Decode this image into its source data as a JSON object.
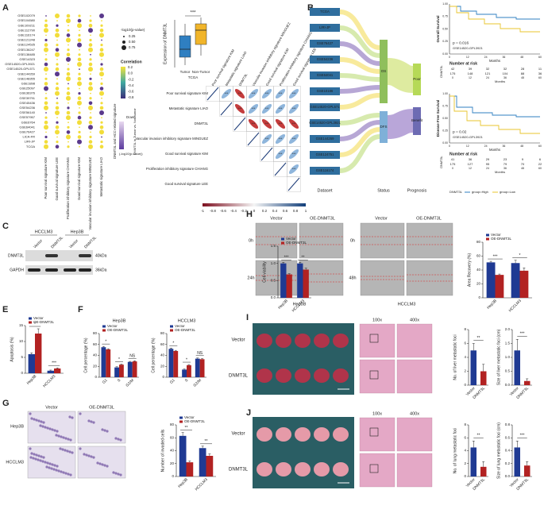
{
  "figure": {
    "letters": [
      "A",
      "B",
      "C",
      "D",
      "E",
      "F",
      "G",
      "H",
      "I",
      "J"
    ],
    "a": {
      "datasets": [
        "GSE102079",
        "GSE104580",
        "GSE109211",
        "GSE112790",
        "GSE116174",
        "GSE121248",
        "GSE124535",
        "GSE136247",
        "GSE138485",
        "GSE14323",
        "GSE14520-GPL3921",
        "GSE14520-GPL571",
        "GSE144269",
        "GSE148355",
        "GSE1898",
        "GSE25097",
        "GSE36376",
        "GSE39791",
        "GSE45436",
        "GSE54236",
        "GSE56140",
        "GSE57957",
        "GSE6764",
        "GSE64041",
        "GSE76427",
        "LICA-FR",
        "LIRI-JP",
        "TCGA"
      ],
      "columns": [
        "Poor survival signature KIM",
        "Good survival signature LEE",
        "Proliferation inhibitory signature CHIANG",
        "Good survival signature KIM",
        "Vascular invasion inhibitory signature MINGUEZ",
        "Metastatic signature LIAO"
      ],
      "side_title": "DNMT3L and HCC-related signature",
      "size_title": "-log10(p-value)",
      "size_labels": [
        "0.25",
        "0.50",
        "0.75"
      ],
      "corr_title": "Correlation",
      "corr_labels": [
        "0.2",
        "0.0",
        "-0.2",
        "-0.4",
        "-0.6",
        "-0.8"
      ],
      "diff_title": "DNMT3L in Tumor vs. Non-tumor",
      "diff_down": "Down",
      "diff_sub": "(-log10(p-value))",
      "box_ylabel": "Expression of DNMT3L",
      "box_sig": "***",
      "box_cats": [
        "Tumor",
        "Non-Tumor"
      ],
      "box_sub": "TCGA",
      "matrix_labels": [
        "Poor survival signature KIM",
        "Metastatic signature LIAO",
        "DNMT3L",
        "Vascular invasion inhibitory signature MINGUEZ",
        "Good survival signature KIM",
        "Proliferation inhibitory signature CHIANG",
        "Good survival signature LEE"
      ],
      "matrix_sig": "***",
      "matrix_scale": [
        "-1",
        "-0.8",
        "-0.6",
        "-0.4",
        "-0.2",
        "0",
        "0.2",
        "0.4",
        "0.6",
        "0.8",
        "1"
      ]
    },
    "b": {
      "datasets": [
        "TCGA",
        "LIRI-JP",
        "GSE76427",
        "GSE54236",
        "GSE64041",
        "GSE10186",
        "GSE14520-GPL571",
        "GSE14520-GPL3921",
        "GSE144269",
        "GSE124751",
        "GSE116174"
      ],
      "status": [
        "OS",
        "DFS"
      ],
      "prognosis": [
        "Poor",
        "Benefit"
      ],
      "axis": [
        "Dataset",
        "Status",
        "Prognosis"
      ],
      "km1": {
        "ylabel": "Overall Survival",
        "p": "p = 0.016",
        "dataset": "GSE14520-GPL3921",
        "xlabel": "Months",
        "risk_title": "Number at risk",
        "risk": [
          [
            "42",
            "39",
            "32",
            "32",
            "28",
            "11"
          ],
          [
            "175",
            "148",
            "121",
            "104",
            "88",
            "36"
          ]
        ]
      },
      "km2": {
        "ylabel": "Disease Free Survival",
        "p": "p = 0.02",
        "dataset": "GSE14520-GPL3921",
        "xlabel": "Months",
        "risk_title": "Number at risk",
        "risk": [
          [
            "41",
            "36",
            "29",
            "23",
            "9",
            "6"
          ],
          [
            "175",
            "127",
            "95",
            "79",
            "70",
            "22"
          ]
        ]
      },
      "xticks": [
        "0",
        "12",
        "24",
        "36",
        "48",
        "60"
      ],
      "yticks": [
        "0.00",
        "0.25",
        "0.50",
        "0.75",
        "1.00"
      ],
      "risk_label": "DNMT3L",
      "legend": [
        "DNMT3L",
        "group=High",
        "group=Low"
      ]
    },
    "c": {
      "cells": [
        "HCCLM3",
        "Hep3B"
      ],
      "lanes": [
        "Vector",
        "DNMT3L",
        "Vector",
        "DNMT3L"
      ],
      "proteins": [
        "DNMT3L",
        "GAPDH"
      ],
      "sizes": [
        "40kDa",
        "36kDa"
      ]
    },
    "g": {
      "cols": [
        "Vector",
        "OE-DNMT3L"
      ],
      "rows": [
        "Hep3B",
        "HCCLM3"
      ]
    },
    "h": {
      "cols": [
        "Vector",
        "OE-DNMT3L"
      ],
      "times_hep3b": [
        "0h",
        "24h"
      ],
      "cols2": [
        "Vector",
        "OE-DNMT3L"
      ],
      "times_hcclm3": [
        "0h",
        "48h"
      ],
      "cells": [
        "Hep3B",
        "HCCLM3"
      ]
    },
    "i": {
      "rows": [
        "Vector",
        "DNMT3L"
      ],
      "mags": [
        "100x",
        "400x"
      ]
    },
    "j": {
      "rows": [
        "Vector",
        "DNMT3L"
      ],
      "mags": [
        "100x",
        "400x"
      ]
    },
    "charts": [
      {
        "type": "bar",
        "ylabel": "Cell viability",
        "categories": [
          "Hep3B",
          "HCCLM3"
        ],
        "series": [
          {
            "name": "Vector",
            "color": "#1f3a93",
            "values": [
              1.0,
              1.0
            ],
            "errors": [
              0.03,
              0.03
            ]
          },
          {
            "name": "OE-DNMT3L",
            "color": "#b22222",
            "values": [
              0.68,
              0.82
            ],
            "errors": [
              0.02,
              0.04
            ]
          }
        ],
        "sig": [
          "***",
          "**"
        ],
        "ylim": [
          0,
          1.5
        ],
        "yticks": [
          {
            "value": 0,
            "label": "0.0"
          },
          0.5,
          {
            "value": 1,
            "label": "1.0"
          },
          1.5
        ]
      },
      {
        "type": "bar",
        "ylabel": "Apoptosis (%)",
        "categories": [
          "Hep3B",
          "HCCLM3"
        ],
        "series": [
          {
            "name": "Vector",
            "color": "#1f3a93",
            "values": [
              6,
              0.8
            ],
            "errors": [
              0.4,
              0.2
            ]
          },
          {
            "name": "OE-DNMT3L",
            "color": "#b22222",
            "values": [
              12.5,
              1.5
            ],
            "errors": [
              1.5,
              0.2
            ]
          }
        ],
        "sig": [
          "*",
          "***"
        ],
        "ylim": [
          0,
          15
        ],
        "yticks": [
          0,
          5,
          10,
          15
        ]
      },
      {
        "type": "bar",
        "title": "Hep3B",
        "ylabel": "Cell percentage (%)",
        "categories": [
          "G1",
          "S",
          "G2/M"
        ],
        "series": [
          {
            "name": "Vector",
            "color": "#1f3a93",
            "values": [
              55,
              18,
              28
            ],
            "errors": [
              1.5,
              1.2,
              1.0
            ]
          },
          {
            "name": "OE-DNMT3L",
            "color": "#b22222",
            "values": [
              51,
              23,
              29
            ],
            "errors": [
              1.2,
              1.0,
              1.2
            ]
          }
        ],
        "sig": [
          "*",
          "*",
          "NS"
        ],
        "ylim": [
          0,
          80
        ],
        "yticks": [
          0,
          20,
          40,
          60,
          80
        ]
      },
      {
        "type": "bar",
        "title": "HCCLM3",
        "ylabel": "Cell percentage (%)",
        "categories": [
          "G1",
          "S",
          "G2/M"
        ],
        "series": [
          {
            "name": "Vector",
            "color": "#1f3a93",
            "values": [
              52,
              14,
              34
            ],
            "errors": [
              1.5,
              1.0,
              1.2
            ]
          },
          {
            "name": "OE-DNMT3L",
            "color": "#b22222",
            "values": [
              48,
              22,
              33
            ],
            "errors": [
              1.2,
              1.2,
              1.0
            ]
          }
        ],
        "sig": [
          "*",
          "*",
          "NS"
        ],
        "ylim": [
          0,
          80
        ],
        "yticks": [
          0,
          20,
          40,
          60,
          80
        ]
      },
      {
        "type": "bar",
        "ylabel": "Number of invaded cells",
        "categories": [
          "Hep3B",
          "HCCLM3"
        ],
        "series": [
          {
            "name": "Vector",
            "color": "#1f3a93",
            "values": [
              63,
              44
            ],
            "errors": [
              5,
              3
            ]
          },
          {
            "name": "OE-DNMT3L",
            "color": "#b22222",
            "values": [
              22,
              32
            ],
            "errors": [
              2,
              3
            ]
          }
        ],
        "sig": [
          "**",
          "**"
        ],
        "ylim": [
          0,
          80
        ],
        "yticks": [
          0,
          20,
          40,
          60,
          80
        ]
      },
      {
        "type": "bar",
        "ylabel": "Area Recovery (%)",
        "categories": [
          "Hep3B",
          "HCCLM3"
        ],
        "series": [
          {
            "name": "Vector",
            "color": "#1f3a93",
            "values": [
              51,
              50
            ],
            "errors": [
              1.5,
              4
            ]
          },
          {
            "name": "OE-DNMT3L",
            "color": "#b22222",
            "values": [
              33,
              39
            ],
            "errors": [
              1.2,
              4
            ]
          }
        ],
        "sig": [
          "***",
          "*"
        ],
        "ylim": [
          0,
          80
        ],
        "yticks": [
          0,
          20,
          40,
          60,
          80
        ]
      },
      {
        "type": "bar",
        "ylabel": "No. of liver metastatic foci",
        "categories": [
          "Vector",
          "DNMT3L"
        ],
        "colors": [
          "#1f3a93",
          "#b22222"
        ],
        "values": [
          5,
          2
        ],
        "errors": [
          1,
          1
        ],
        "sig": [
          "**"
        ],
        "ylim": [
          0,
          8
        ],
        "yticks": [
          0,
          2,
          4,
          6,
          8
        ]
      },
      {
        "type": "bar",
        "ylabel": "Size of liver metastatic foci (cm)",
        "categories": [
          "Vector",
          "DNMT3L"
        ],
        "colors": [
          "#1f3a93",
          "#b22222"
        ],
        "values": [
          1.25,
          0.15
        ],
        "errors": [
          0.4,
          0.08
        ],
        "sig": [
          "***"
        ],
        "ylim": [
          0,
          2
        ],
        "yticks": [
          {
            "value": 0,
            "label": "0.0"
          },
          0.5,
          {
            "value": 1,
            "label": "1.0"
          },
          1.5,
          {
            "value": 2,
            "label": "2.0"
          }
        ]
      },
      {
        "type": "bar",
        "ylabel": "No. of lung metastatic foci",
        "categories": [
          "Vector",
          "DNMT3L"
        ],
        "colors": [
          "#1f3a93",
          "#b22222"
        ],
        "values": [
          4.5,
          1.5
        ],
        "errors": [
          1,
          0.8
        ],
        "sig": [
          "**"
        ],
        "ylim": [
          0,
          8
        ],
        "yticks": [
          0,
          2,
          4,
          6,
          8
        ]
      },
      {
        "type": "bar",
        "ylabel": "Size of lung metastatic foci (cm)",
        "categories": [
          "Vector",
          "DNMT3L"
        ],
        "colors": [
          "#1f3a93",
          "#b22222"
        ],
        "values": [
          0.45,
          0.17
        ],
        "errors": [
          0.1,
          0.06
        ],
        "sig": [
          "***"
        ],
        "ylim": [
          0,
          0.8
        ],
        "yticks": [
          {
            "value": 0,
            "label": "0.0"
          },
          0.2,
          0.4,
          0.6,
          0.8
        ]
      }
    ]
  }
}
